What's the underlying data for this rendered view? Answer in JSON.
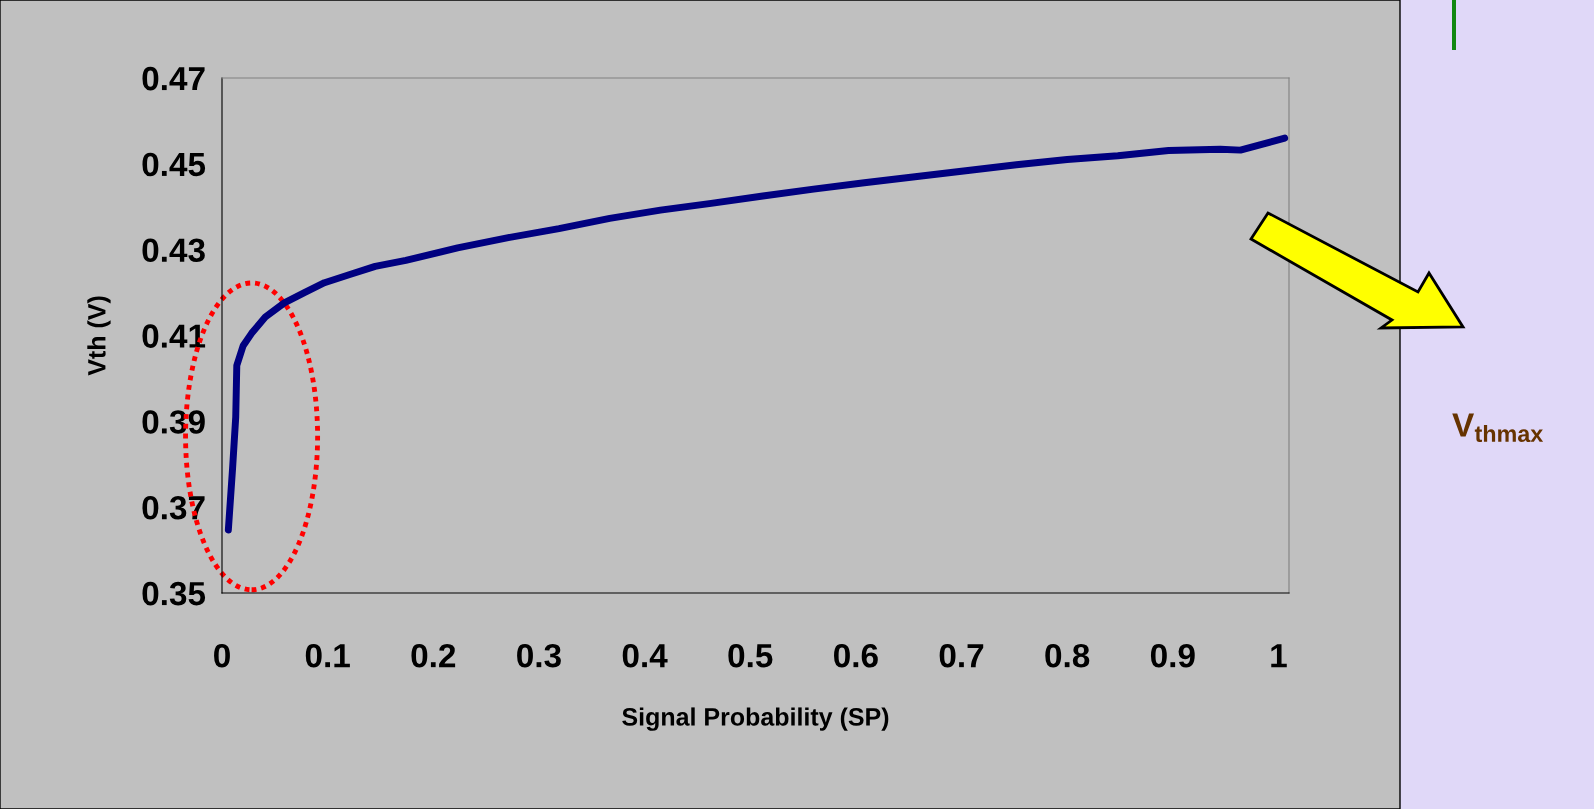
{
  "chart_data": {
    "type": "line",
    "xlabel": "Signal Probability (SP)",
    "ylabel": "Vth (V)",
    "x": [
      0.006,
      0.01,
      0.013,
      0.014,
      0.02,
      0.028,
      0.041,
      0.059,
      0.078,
      0.097,
      0.121,
      0.145,
      0.174,
      0.223,
      0.271,
      0.319,
      0.367,
      0.415,
      0.463,
      0.512,
      0.56,
      0.608,
      0.656,
      0.704,
      0.752,
      0.8,
      0.848,
      0.896,
      0.945,
      0.964,
      1.006
    ],
    "series": [
      {
        "color": "#000080",
        "values": [
          0.3647,
          0.379,
          0.391,
          0.403,
          0.4076,
          0.4105,
          0.4143,
          0.4176,
          0.42,
          0.4223,
          0.4242,
          0.4261,
          0.4275,
          0.4304,
          0.4328,
          0.4349,
          0.4373,
          0.4392,
          0.4408,
          0.4425,
          0.4441,
          0.4456,
          0.447,
          0.4484,
          0.4498,
          0.451,
          0.4519,
          0.4531,
          0.4534,
          0.4532,
          0.456
        ]
      }
    ],
    "xlim": [
      0,
      1.01
    ],
    "xticks": [
      0,
      0.1,
      0.2,
      0.3,
      0.4,
      0.5,
      0.6,
      0.7,
      0.8,
      0.9,
      1
    ],
    "ylim": [
      0.35,
      0.47
    ],
    "yticks": [
      0.35,
      0.37,
      0.39,
      0.41,
      0.43,
      0.45,
      0.47
    ],
    "annotations": [
      "V$_{thmax}$"
    ],
    "grid": false,
    "marker": "none",
    "line_style": "solid"
  }
}
